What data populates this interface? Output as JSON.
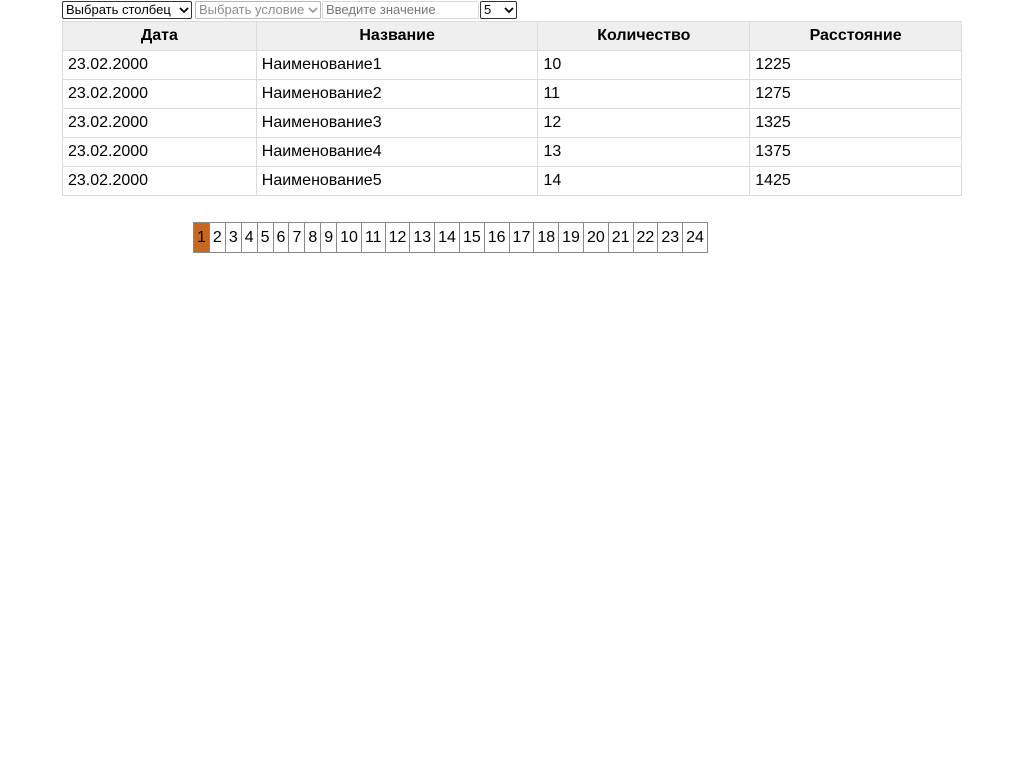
{
  "filters": {
    "column_select": "Выбрать столбец",
    "condition_select": "Выбрать условие",
    "value_placeholder": "Введите значение",
    "per_page": "5"
  },
  "table": {
    "headers": [
      "Дата",
      "Название",
      "Количество",
      "Расстояние"
    ],
    "rows": [
      [
        "23.02.2000",
        "Наименование1",
        "10",
        "1225"
      ],
      [
        "23.02.2000",
        "Наименование2",
        "11",
        "1275"
      ],
      [
        "23.02.2000",
        "Наименование3",
        "12",
        "1325"
      ],
      [
        "23.02.2000",
        "Наименование4",
        "13",
        "1375"
      ],
      [
        "23.02.2000",
        "Наименование5",
        "14",
        "1425"
      ]
    ]
  },
  "pagination": {
    "pages": [
      "1",
      "2",
      "3",
      "4",
      "5",
      "6",
      "7",
      "8",
      "9",
      "10",
      "11",
      "12",
      "13",
      "14",
      "15",
      "16",
      "17",
      "18",
      "19",
      "20",
      "21",
      "22",
      "23",
      "24"
    ],
    "active": "1"
  },
  "colors": {
    "active_page": "#c8671d",
    "header_bg": "#efefef",
    "border": "#dcdcdc"
  },
  "icons": {
    "select_caret": "chevron-down-icon"
  }
}
